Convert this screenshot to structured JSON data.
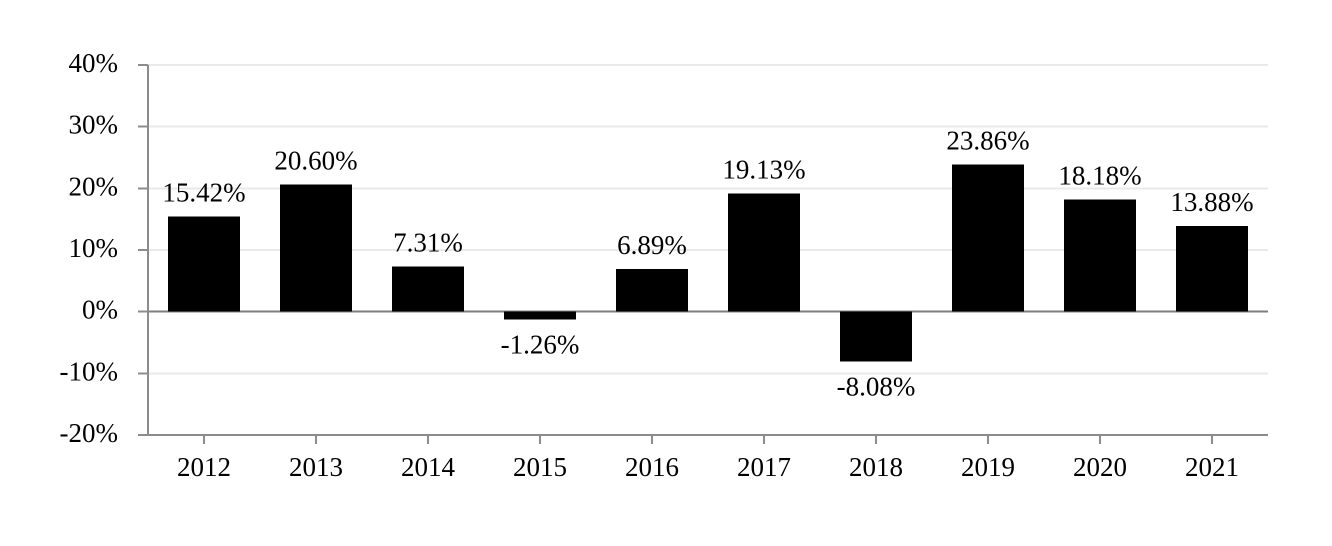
{
  "chart_data": {
    "type": "bar",
    "title": "",
    "xlabel": "",
    "ylabel": "",
    "categories": [
      "2012",
      "2013",
      "2014",
      "2015",
      "2016",
      "2017",
      "2018",
      "2019",
      "2020",
      "2021"
    ],
    "values": [
      15.42,
      20.6,
      7.31,
      -1.26,
      6.89,
      19.13,
      -8.08,
      23.86,
      18.18,
      13.88
    ],
    "data_labels": [
      "15.42%",
      "20.60%",
      "7.31%",
      "-1.26%",
      "6.89%",
      "19.13%",
      "-8.08%",
      "23.86%",
      "18.18%",
      "13.88%"
    ],
    "y_axis": {
      "ylim": [
        -20,
        40
      ],
      "ticks": [
        40,
        30,
        20,
        10,
        0,
        -10,
        -20
      ],
      "tick_labels": [
        "40%",
        "30%",
        "20%",
        "10%",
        "0%",
        "-10%",
        "-20%"
      ]
    },
    "grid": true,
    "legend": false,
    "colors": {
      "bar": "#000000",
      "gridline": "#e9e9e9",
      "axis": "#8c8c8c",
      "zero_line": "#7f7f7f",
      "text": "#000000",
      "background": "#ffffff"
    }
  }
}
